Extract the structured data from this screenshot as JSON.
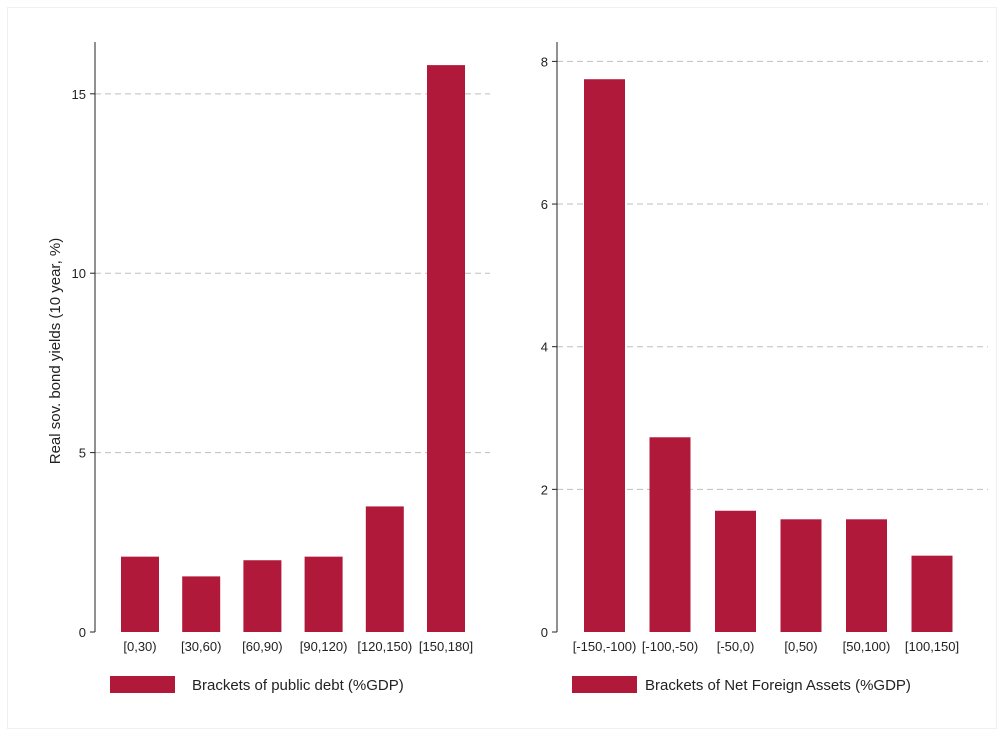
{
  "colors": {
    "bar": "#b0193a",
    "grid": "#bfbfbf",
    "axis": "#222222"
  },
  "chart_data": [
    {
      "type": "bar",
      "categories": [
        "[0,30)",
        "[30,60)",
        "[60,90)",
        "[90,120)",
        "[120,150)",
        "[150,180]"
      ],
      "values": [
        2.1,
        1.55,
        2.0,
        2.1,
        3.5,
        15.8
      ],
      "ylabel": "Real sov. bond yields (10 year, %)",
      "ylim": [
        0,
        16.5
      ],
      "yticks": [
        0,
        5,
        10,
        15
      ],
      "grid": true,
      "legend": "Brackets of public debt (%GDP)",
      "legend_position": "bottom"
    },
    {
      "type": "bar",
      "categories": [
        "[-150,-100)",
        "[-100,-50)",
        "[-50,0)",
        "[0,50)",
        "[50,100)",
        "[100,150]"
      ],
      "values": [
        7.75,
        2.73,
        1.7,
        1.58,
        1.58,
        1.07
      ],
      "ylim": [
        0,
        8.3
      ],
      "yticks": [
        0,
        2,
        4,
        6,
        8
      ],
      "grid": true,
      "legend": "Brackets of Net Foreign Assets (%GDP)",
      "legend_position": "bottom"
    }
  ]
}
